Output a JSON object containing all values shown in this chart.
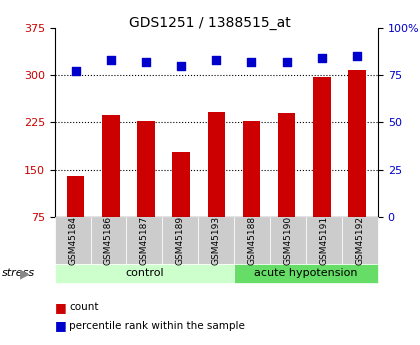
{
  "title": "GDS1251 / 1388515_at",
  "samples": [
    "GSM45184",
    "GSM45186",
    "GSM45187",
    "GSM45189",
    "GSM45193",
    "GSM45188",
    "GSM45190",
    "GSM45191",
    "GSM45192"
  ],
  "counts": [
    140,
    237,
    228,
    178,
    242,
    228,
    240,
    297,
    308
  ],
  "percentiles": [
    77,
    83,
    82,
    80,
    83,
    82,
    82,
    84,
    85
  ],
  "groups": [
    "control",
    "control",
    "control",
    "control",
    "control",
    "acute hypotension",
    "acute hypotension",
    "acute hypotension",
    "acute hypotension"
  ],
  "bar_color": "#cc0000",
  "dot_color": "#0000cc",
  "left_ylim": [
    75,
    375
  ],
  "left_yticks": [
    75,
    150,
    225,
    300,
    375
  ],
  "right_ylim": [
    0,
    100
  ],
  "right_yticks": [
    0,
    25,
    50,
    75,
    100
  ],
  "right_yticklabels": [
    "0",
    "25",
    "50",
    "75",
    "100%"
  ],
  "group_colors": {
    "control": "#ccffcc",
    "acute hypotension": "#66dd66"
  },
  "background_color": "#ffffff",
  "tick_label_color_left": "#cc0000",
  "tick_label_color_right": "#0000cc",
  "grid_color": "#000000",
  "xticklabel_bg": "#cccccc"
}
